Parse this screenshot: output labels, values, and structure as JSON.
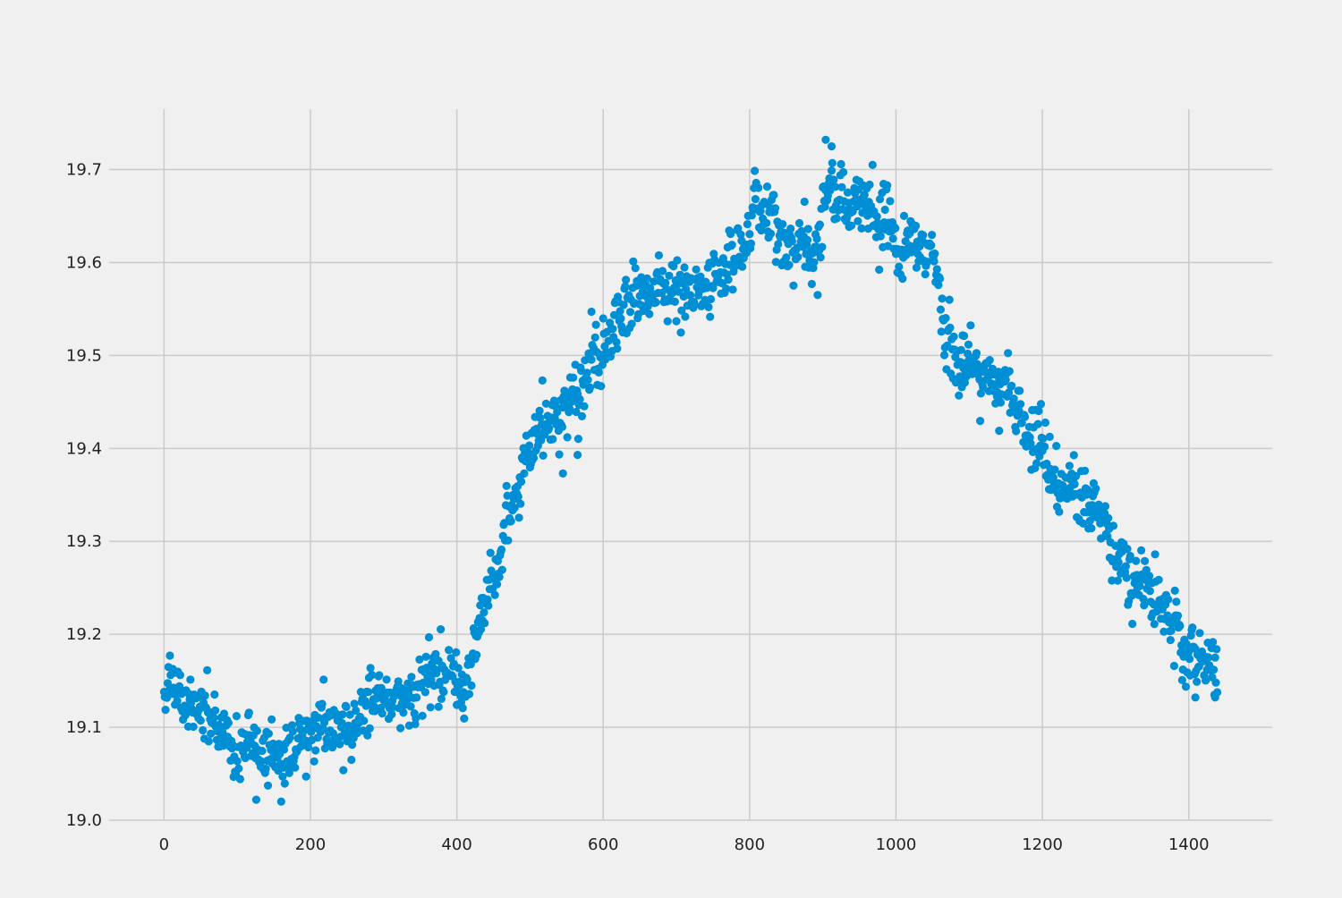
{
  "chart_data": {
    "type": "scatter",
    "title": "",
    "xlabel": "",
    "ylabel": "",
    "xlim": [
      -75,
      1514
    ],
    "ylim": [
      19.0,
      19.765
    ],
    "xticks": [
      0,
      200,
      400,
      600,
      800,
      1000,
      1200,
      1400
    ],
    "yticks": [
      19.0,
      19.1,
      19.2,
      19.3,
      19.4,
      19.5,
      19.6,
      19.7
    ],
    "xtick_labels": [
      "0",
      "200",
      "400",
      "600",
      "800",
      "1000",
      "1200",
      "1400"
    ],
    "ytick_labels": [
      "19.0",
      "19.1",
      "19.2",
      "19.3",
      "19.4",
      "19.5",
      "19.6",
      "19.7"
    ],
    "grid": true,
    "legend": "none",
    "marker_color": "#008fd5",
    "background_color": "#f0f0f0",
    "grid_color": "#cbcbcb",
    "point_count": 1440,
    "x_start": 0,
    "x_step": 1,
    "trend": {
      "x": [
        0,
        50,
        100,
        130,
        200,
        260,
        300,
        350,
        400,
        410,
        430,
        460,
        500,
        540,
        580,
        620,
        660,
        700,
        740,
        780,
        810,
        850,
        890,
        910,
        950,
        980,
        1000,
        1050,
        1100,
        1150,
        1200,
        1250,
        1300,
        1350,
        1400,
        1439
      ],
      "y": [
        19.15,
        19.1,
        19.075,
        19.06,
        19.1,
        19.13,
        19.15,
        19.15,
        19.17,
        19.17,
        19.22,
        19.31,
        19.42,
        19.43,
        19.49,
        19.53,
        19.56,
        19.58,
        19.59,
        19.61,
        19.665,
        19.625,
        19.61,
        19.7,
        19.665,
        19.64,
        19.6,
        19.58,
        19.5,
        19.46,
        19.4,
        19.36,
        19.3,
        19.24,
        19.18,
        19.155
      ]
    },
    "noise_sd": 0.016,
    "outliers": [
      {
        "x": 126,
        "y": 19.022
      },
      {
        "x": 194,
        "y": 19.047
      },
      {
        "x": 256,
        "y": 19.065
      },
      {
        "x": 323,
        "y": 19.099
      },
      {
        "x": 375,
        "y": 19.122
      },
      {
        "x": 400,
        "y": 19.124
      },
      {
        "x": 545,
        "y": 19.373
      },
      {
        "x": 565,
        "y": 19.393
      },
      {
        "x": 584,
        "y": 19.547
      },
      {
        "x": 893,
        "y": 19.565
      },
      {
        "x": 904,
        "y": 19.732
      },
      {
        "x": 912,
        "y": 19.725
      },
      {
        "x": 968,
        "y": 19.705
      },
      {
        "x": 1141,
        "y": 19.419
      },
      {
        "x": 1178,
        "y": 19.402
      },
      {
        "x": 1227,
        "y": 19.353
      },
      {
        "x": 1383,
        "y": 19.235
      },
      {
        "x": 1409,
        "y": 19.132
      },
      {
        "x": 1436,
        "y": 19.132
      }
    ]
  }
}
